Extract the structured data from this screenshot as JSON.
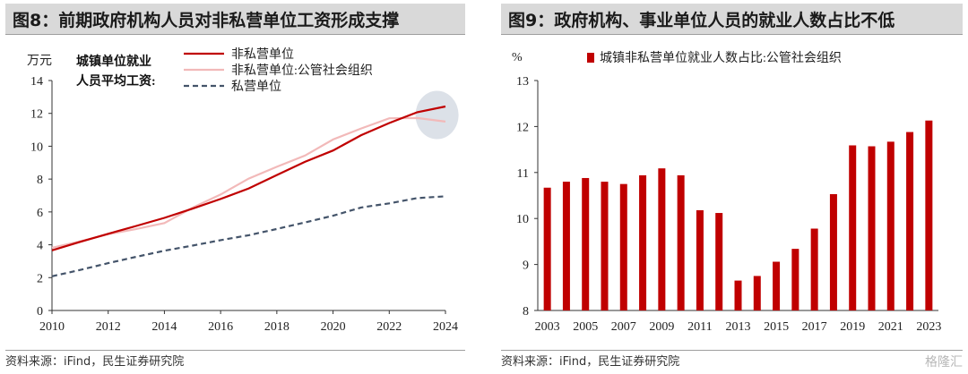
{
  "left": {
    "title": "图8：前期政府机构人员对非私营单位工资形成支撑",
    "source": "资料来源：iFind，民生证券研究院",
    "annotation_line1": "城镇单位就业",
    "annotation_line2": "人员平均工资:",
    "chart_data": {
      "type": "line",
      "ylabel": "万元",
      "ylim": [
        0,
        14
      ],
      "yticks": [
        "0",
        "2",
        "4",
        "6",
        "8",
        "10",
        "12",
        "14"
      ],
      "xticks": [
        "2010",
        "2012",
        "2014",
        "2016",
        "2018",
        "2020",
        "2022",
        "2024"
      ],
      "x": [
        2010,
        2011,
        2012,
        2013,
        2014,
        2015,
        2016,
        2017,
        2018,
        2019,
        2020,
        2021,
        2022,
        2023,
        2024
      ],
      "legend_position": "top-right",
      "series": [
        {
          "name": "非私营单位",
          "color": "#c00000",
          "dash": "solid",
          "values": [
            3.66,
            4.18,
            4.67,
            5.15,
            5.64,
            6.2,
            6.79,
            7.43,
            8.25,
            9.05,
            9.74,
            10.67,
            11.41,
            12.07,
            12.42
          ]
        },
        {
          "name": "非私营单位:公管社会组织",
          "color": "#f2b9b9",
          "dash": "solid",
          "values": [
            3.82,
            4.21,
            4.64,
            4.96,
            5.32,
            6.26,
            7.06,
            8.03,
            8.75,
            9.43,
            10.41,
            11.08,
            11.7,
            11.72,
            11.5
          ]
        },
        {
          "name": "私营单位",
          "color": "#44546a",
          "dash": "dashed",
          "values": [
            2.08,
            2.47,
            2.88,
            3.27,
            3.64,
            3.95,
            4.28,
            4.58,
            4.96,
            5.36,
            5.77,
            6.27,
            6.52,
            6.84,
            6.95
          ]
        }
      ]
    }
  },
  "right": {
    "title": "图9：政府机构、事业单位人员的就业人数占比不低",
    "source": "资料来源：iFind，民生证券研究院",
    "watermark": "格隆汇",
    "chart_data": {
      "type": "bar",
      "ylabel": "%",
      "ylim": [
        8,
        13
      ],
      "yticks": [
        "8",
        "9",
        "10",
        "11",
        "12",
        "13"
      ],
      "xticks": [
        "2003",
        "2005",
        "2007",
        "2009",
        "2011",
        "2013",
        "2015",
        "2017",
        "2019",
        "2021",
        "2023"
      ],
      "categories": [
        "2003",
        "2004",
        "2005",
        "2006",
        "2007",
        "2008",
        "2009",
        "2010",
        "2011",
        "2012",
        "2013",
        "2014",
        "2015",
        "2016",
        "2017",
        "2018",
        "2019",
        "2020",
        "2021",
        "2022",
        "2023"
      ],
      "legend_position": "top",
      "series": [
        {
          "name": "城镇非私营单位就业人数占比:公管社会组织",
          "color": "#c00000",
          "values": [
            10.67,
            10.8,
            10.88,
            10.8,
            10.75,
            10.94,
            11.09,
            10.94,
            10.18,
            10.12,
            8.65,
            8.75,
            9.06,
            9.34,
            9.78,
            10.53,
            11.59,
            11.57,
            11.67,
            11.88,
            12.13
          ]
        }
      ]
    }
  }
}
